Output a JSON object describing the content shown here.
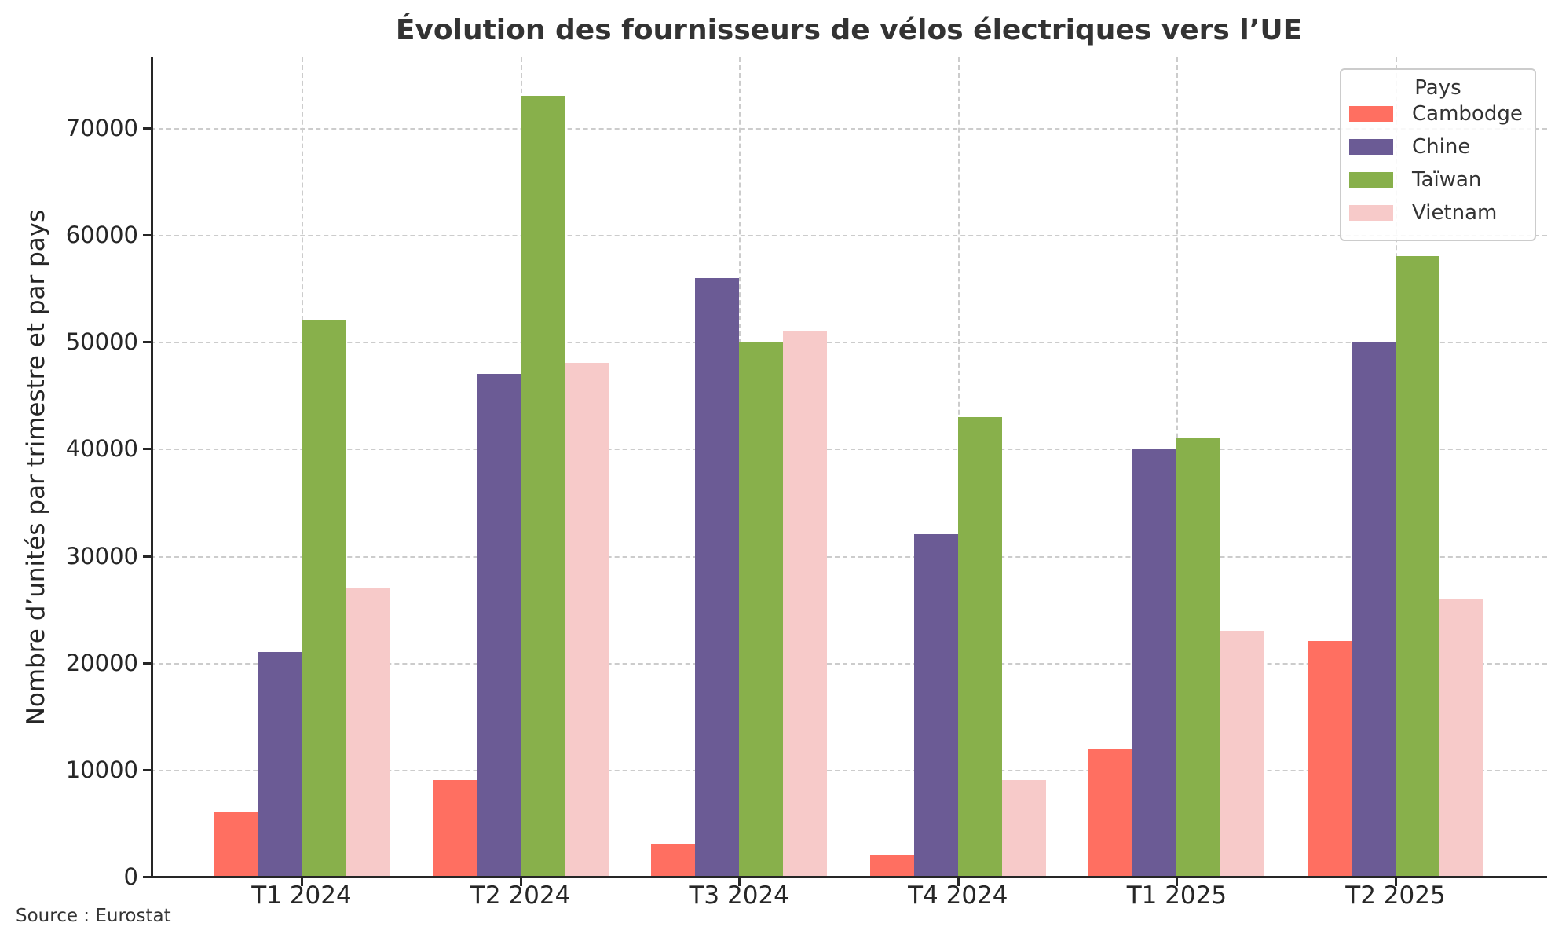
{
  "chart_data": {
    "type": "bar",
    "title": "Évolution des fournisseurs de vélos électriques vers l’UE",
    "xlabel": "",
    "ylabel": "Nombre d’unités par trimestre et par pays",
    "categories": [
      "T1 2024",
      "T2 2024",
      "T3 2024",
      "T4 2024",
      "T1 2025",
      "T2 2025"
    ],
    "series": [
      {
        "name": "Cambodge",
        "color": "#ff6f61",
        "values": [
          6000,
          9000,
          3000,
          2000,
          12000,
          22000
        ]
      },
      {
        "name": "Chine",
        "color": "#6b5b95",
        "values": [
          21000,
          47000,
          56000,
          32000,
          40000,
          50000
        ]
      },
      {
        "name": "Taïwan",
        "color": "#88b04b",
        "values": [
          52000,
          73000,
          50000,
          43000,
          41000,
          58000
        ]
      },
      {
        "name": "Vietnam",
        "color": "#f7cac9",
        "values": [
          27000,
          48000,
          51000,
          9000,
          23000,
          26000
        ]
      }
    ],
    "ylim": [
      0,
      76600
    ],
    "yticks": [
      0,
      10000,
      20000,
      30000,
      40000,
      50000,
      60000,
      70000
    ],
    "ytick_labels": [
      "0",
      "10000",
      "20000",
      "30000",
      "40000",
      "50000",
      "60000",
      "70000"
    ],
    "grid": true,
    "legend": {
      "title": "Pays",
      "position": "upper right"
    },
    "source": "Source : Eurostat"
  },
  "title": "Évolution des fournisseurs de vélos électriques vers l’UE",
  "ylabel": "Nombre d’unités par trimestre et par pays",
  "source": "Source : Eurostat",
  "legend": {
    "title": "Pays",
    "items": [
      {
        "label": "Cambodge",
        "color": "#ff6f61"
      },
      {
        "label": "Chine",
        "color": "#6b5b95"
      },
      {
        "label": "Taïwan",
        "color": "#88b04b"
      },
      {
        "label": "Vietnam",
        "color": "#f7cac9"
      }
    ]
  }
}
